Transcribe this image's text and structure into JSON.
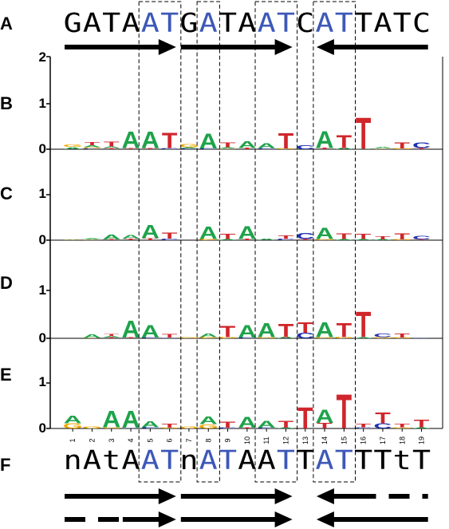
{
  "panels": {
    "A": {
      "label": "A"
    },
    "B": {
      "label": "B"
    },
    "C": {
      "label": "C"
    },
    "D": {
      "label": "D"
    },
    "E": {
      "label": "E"
    },
    "F": {
      "label": "F"
    }
  },
  "top_sequence": [
    {
      "c": "G",
      "blue": false
    },
    {
      "c": "A",
      "blue": false
    },
    {
      "c": "T",
      "blue": false
    },
    {
      "c": "A",
      "blue": false
    },
    {
      "c": "A",
      "blue": true
    },
    {
      "c": "T",
      "blue": true
    },
    {
      "c": "G",
      "blue": false
    },
    {
      "c": "A",
      "blue": true
    },
    {
      "c": "T",
      "blue": false
    },
    {
      "c": "A",
      "blue": false
    },
    {
      "c": "A",
      "blue": true
    },
    {
      "c": "T",
      "blue": true
    },
    {
      "c": "C",
      "blue": false
    },
    {
      "c": "A",
      "blue": true
    },
    {
      "c": "T",
      "blue": true
    },
    {
      "c": "T",
      "blue": false
    },
    {
      "c": "A",
      "blue": false
    },
    {
      "c": "T",
      "blue": false
    },
    {
      "c": "C",
      "blue": false
    }
  ],
  "bottom_sequence": [
    {
      "c": "n",
      "blue": false
    },
    {
      "c": "A",
      "blue": false
    },
    {
      "c": "t",
      "blue": false
    },
    {
      "c": "A",
      "blue": false
    },
    {
      "c": "A",
      "blue": true
    },
    {
      "c": "T",
      "blue": true
    },
    {
      "c": "n",
      "blue": false
    },
    {
      "c": "A",
      "blue": true
    },
    {
      "c": "T",
      "blue": true
    },
    {
      "c": "A",
      "blue": false
    },
    {
      "c": "A",
      "blue": false
    },
    {
      "c": "T",
      "blue": true
    },
    {
      "c": "T",
      "blue": false
    },
    {
      "c": "A",
      "blue": true
    },
    {
      "c": "T",
      "blue": true
    },
    {
      "c": "T",
      "blue": false
    },
    {
      "c": "T",
      "blue": false
    },
    {
      "c": "t",
      "blue": false
    },
    {
      "c": "T",
      "blue": false
    }
  ],
  "axis": {
    "y_ticks": [
      "2",
      "1",
      "0"
    ],
    "ymax": 2
  },
  "positions": [
    "1",
    "2",
    "3",
    "4",
    "5",
    "6",
    "7",
    "8",
    "9",
    "10",
    "11",
    "12",
    "13",
    "14",
    "15",
    "16",
    "17",
    "18",
    "19"
  ],
  "colors": {
    "A": "#1ea34a",
    "C": "#2030b0",
    "G": "#f2a900",
    "T": "#d0262b",
    "blue_text": "#3d58b8",
    "black": "#000000"
  },
  "boxes": [
    [
      5,
      6
    ],
    [
      8,
      8
    ],
    [
      11,
      12
    ],
    [
      14,
      15
    ]
  ],
  "top_arrows": [
    {
      "from": 1,
      "to": 6,
      "dir": "right"
    },
    {
      "from": 7,
      "to": 12,
      "dir": "right"
    },
    {
      "from": 14,
      "to": 19,
      "dir": "left"
    }
  ],
  "bottom_arrows_row1": [
    {
      "from": 1,
      "to": 6,
      "dir": "right",
      "dashed": false
    },
    {
      "from": 7,
      "to": 12,
      "dir": "right",
      "dashed": false
    },
    {
      "from": 14,
      "to": 16,
      "dir": "left",
      "dashed": false
    },
    {
      "from": 16,
      "to": 19,
      "dir": "none",
      "dashed": true
    }
  ],
  "bottom_arrows_row2": [
    {
      "from": 1,
      "to": 4,
      "dir": "none",
      "dashed": true
    },
    {
      "from": 4,
      "to": 6,
      "dir": "right",
      "dashed": false
    },
    {
      "from": 7,
      "to": 12,
      "dir": "right",
      "dashed": false
    },
    {
      "from": 14,
      "to": 19,
      "dir": "left",
      "dashed": false
    }
  ],
  "logos": {
    "B": [
      [
        [
          "A",
          0.1
        ],
        [
          "G",
          0.12
        ]
      ],
      [
        [
          "C",
          0.04
        ],
        [
          "G",
          0.05
        ],
        [
          "A",
          0.09
        ],
        [
          "T",
          0.14
        ]
      ],
      [
        [
          "T",
          0.05
        ],
        [
          "A",
          0.07
        ],
        [
          "T",
          0.2
        ]
      ],
      [
        [
          "T",
          0.05
        ],
        [
          "A",
          0.75
        ]
      ],
      [
        [
          "T",
          0.05
        ],
        [
          "A",
          0.75
        ]
      ],
      [
        [
          "C",
          0.05
        ],
        [
          "T",
          0.7
        ]
      ],
      [
        [
          "C",
          0.04
        ],
        [
          "A",
          0.05
        ],
        [
          "G",
          0.14
        ]
      ],
      [
        [
          "C",
          0.04
        ],
        [
          "A",
          0.68
        ]
      ],
      [
        [
          "G",
          0.03
        ],
        [
          "A",
          0.05
        ],
        [
          "T",
          0.2
        ]
      ],
      [
        [
          "T",
          0.06
        ],
        [
          "A",
          0.3
        ]
      ],
      [
        [
          "C",
          0.05
        ],
        [
          "A",
          0.2
        ]
      ],
      [
        [
          "G",
          0.04
        ],
        [
          "T",
          0.69
        ]
      ],
      [
        [
          "C",
          0.19
        ]
      ],
      [
        [
          "T",
          0.06
        ],
        [
          "A",
          0.76
        ]
      ],
      [
        [
          "A",
          0.06
        ],
        [
          "T",
          0.58
        ]
      ],
      [
        [
          "A",
          0.03
        ],
        [
          "T",
          1.4
        ]
      ],
      [
        [
          "G",
          0.03
        ],
        [
          "A",
          0.06
        ]
      ],
      [
        [
          "G",
          0.04
        ],
        [
          "T",
          0.28
        ]
      ],
      [
        [
          "T",
          0.05
        ],
        [
          "C",
          0.25
        ]
      ]
    ],
    "C": [
      [
        [
          "G",
          0.02
        ],
        [
          "A",
          0.02
        ]
      ],
      [
        [
          "G",
          0.03
        ],
        [
          "A",
          0.05
        ]
      ],
      [
        [
          "T",
          0.04
        ],
        [
          "A",
          0.2
        ]
      ],
      [
        [
          "T",
          0.07
        ],
        [
          "A",
          0.17
        ]
      ],
      [
        [
          "T",
          0.08
        ],
        [
          "A",
          0.6
        ]
      ],
      [
        [
          "C",
          0.07
        ],
        [
          "T",
          0.28
        ]
      ],
      [],
      [
        [
          "G",
          0.06
        ],
        [
          "A",
          0.55
        ]
      ],
      [
        [
          "A",
          0.05
        ],
        [
          "T",
          0.22
        ]
      ],
      [
        [
          "T",
          0.06
        ],
        [
          "A",
          0.58
        ]
      ],
      [
        [
          "A",
          0.06
        ]
      ],
      [
        [
          "C",
          0.06
        ],
        [
          "T",
          0.16
        ]
      ],
      [
        [
          "T",
          0.05
        ],
        [
          "C",
          0.28
        ]
      ],
      [
        [
          "G",
          0.05
        ],
        [
          "A",
          0.5
        ]
      ],
      [
        [
          "A",
          0.05
        ],
        [
          "T",
          0.25
        ]
      ],
      [
        [
          "A",
          0.05
        ],
        [
          "T",
          0.23
        ]
      ],
      [
        [
          "A",
          0.04
        ],
        [
          "T",
          0.14
        ]
      ],
      [
        [
          "G",
          0.04
        ],
        [
          "T",
          0.28
        ]
      ],
      [
        [
          "T",
          0.04
        ],
        [
          "C",
          0.17
        ]
      ]
    ],
    "D": [
      [],
      [
        [
          "G",
          0.02
        ],
        [
          "A",
          0.15
        ]
      ],
      [
        [
          "T",
          0.04
        ],
        [
          "A",
          0.07
        ],
        [
          "T",
          0.1
        ]
      ],
      [
        [
          "T",
          0.04
        ],
        [
          "A",
          0.76
        ]
      ],
      [
        [
          "C",
          0.04
        ],
        [
          "A",
          0.56
        ]
      ],
      [
        [
          "C",
          0.03
        ],
        [
          "T",
          0.16
        ]
      ],
      [
        [
          "G",
          0.04
        ]
      ],
      [
        [
          "G",
          0.06
        ],
        [
          "A",
          0.17
        ]
      ],
      [
        [
          "G",
          0.06
        ],
        [
          "T",
          0.52
        ]
      ],
      [
        [
          "C",
          0.04
        ],
        [
          "A",
          0.55
        ]
      ],
      [
        [
          "G",
          0.05
        ],
        [
          "A",
          0.62
        ]
      ],
      [
        [
          "A",
          0.06
        ],
        [
          "T",
          0.6
        ]
      ],
      [
        [
          "C",
          0.25
        ],
        [
          "T",
          0.46
        ]
      ],
      [
        [
          "G",
          0.05
        ],
        [
          "A",
          0.67
        ]
      ],
      [
        [
          "G",
          0.06
        ],
        [
          "T",
          0.62
        ]
      ],
      [
        [
          "A",
          0.05
        ],
        [
          "T",
          1.15
        ]
      ],
      [
        [
          "G",
          0.05
        ],
        [
          "C",
          0.17
        ]
      ],
      [
        [
          "G",
          0.04
        ],
        [
          "T",
          0.18
        ]
      ],
      [
        [
          "C",
          0.02
        ]
      ]
    ],
    "E": [
      [
        [
          "G",
          0.23
        ],
        [
          "A",
          0.35
        ]
      ],
      [
        [
          "G",
          0.09
        ]
      ],
      [
        [
          "G",
          0.05
        ],
        [
          "A",
          0.75
        ]
      ],
      [
        [
          "C",
          0.03
        ],
        [
          "A",
          0.78
        ]
      ],
      [
        [
          "C",
          0.06
        ],
        [
          "A",
          0.28
        ]
      ],
      [
        [
          "G",
          0.04
        ],
        [
          "T",
          0.18
        ]
      ],
      [
        [
          "G",
          0.08
        ]
      ],
      [
        [
          "G",
          0.19
        ],
        [
          "A",
          0.35
        ]
      ],
      [
        [
          "C",
          0.04
        ],
        [
          "T",
          0.27
        ]
      ],
      [
        [
          "T",
          0.04
        ],
        [
          "A",
          0.48
        ]
      ],
      [
        [
          "C",
          0.04
        ],
        [
          "A",
          0.3
        ]
      ],
      [
        [
          "A",
          0.04
        ],
        [
          "T",
          0.3
        ]
      ],
      [
        [
          "T",
          0.95
        ]
      ],
      [
        [
          "T",
          0.25
        ],
        [
          "A",
          0.6
        ]
      ],
      [
        [
          "T",
          1.55
        ]
      ],
      [
        [
          "C",
          0.05
        ],
        [
          "T",
          0.15
        ]
      ],
      [
        [
          "C",
          0.22
        ],
        [
          "T",
          0.48
        ]
      ],
      [
        [
          "G",
          0.05
        ],
        [
          "T",
          0.15
        ]
      ],
      [
        [
          "A",
          0.05
        ],
        [
          "T",
          0.35
        ]
      ]
    ]
  }
}
